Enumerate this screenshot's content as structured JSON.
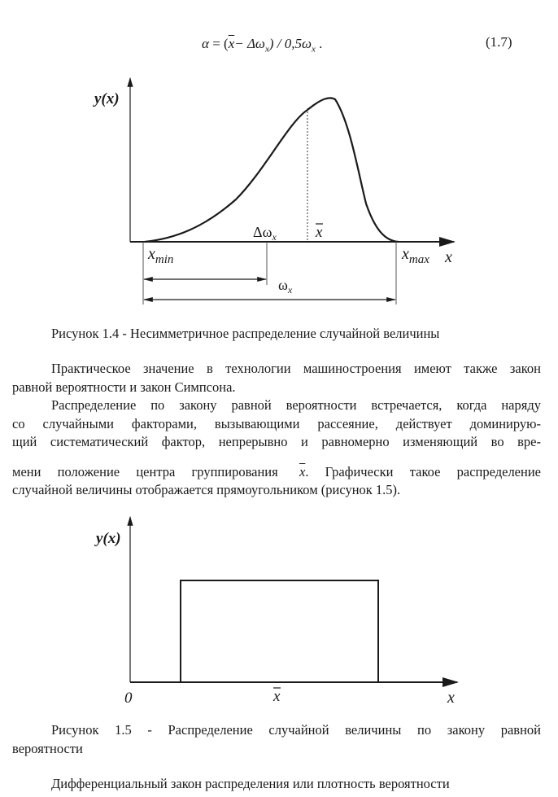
{
  "formula": {
    "expression": "α = (x̄ − Δω_x) / 0,5ω_x .",
    "parts": {
      "alpha": "α",
      "eq": " = (",
      "xbar": "x",
      "minus": "− Δω",
      "sub_x": "x",
      "div": ") / 0,5ω",
      "sub_x2": "x",
      "dot": " ."
    },
    "number": "(1.7)"
  },
  "figure_1_4": {
    "y_label": "y(x)",
    "x_label": "x",
    "delta_omega": "Δω",
    "delta_omega_sub": "x",
    "x_bar": "x",
    "x_min": "x",
    "x_min_sub": "min",
    "x_max": "x",
    "x_max_sub": "max",
    "omega": "ω",
    "omega_sub": "x",
    "caption": "Рисунок 1.4 - Несимметричное распределение случайной величины"
  },
  "body": {
    "paragraph1": [
      "Практическое значение в технологии машиностроения имеют также закон",
      "равной вероятности и закон Симпсона."
    ],
    "paragraph2": [
      "Распределение по закону равной вероятности встречается, когда наряду",
      "со случайными факторами, вызывающими рассеяние, действует доминирую-",
      "щий систематический фактор, непрерывно и равномерно изменяющий во вре-",
      "мени положение центра группирования",
      "x",
      ". Графически такое распределение",
      "случайной величины отображается прямоугольником (рисунок 1.5)."
    ]
  },
  "figure_1_5": {
    "y_label": "y(x)",
    "origin": "0",
    "x_bar": "x",
    "x_label": "x",
    "caption_line1": "Рисунок 1.5 - Распределение случайной величины по закону равной",
    "caption_line2": "вероятности"
  },
  "footer_text": "Дифференциальный закон распределения или плотность вероятности"
}
